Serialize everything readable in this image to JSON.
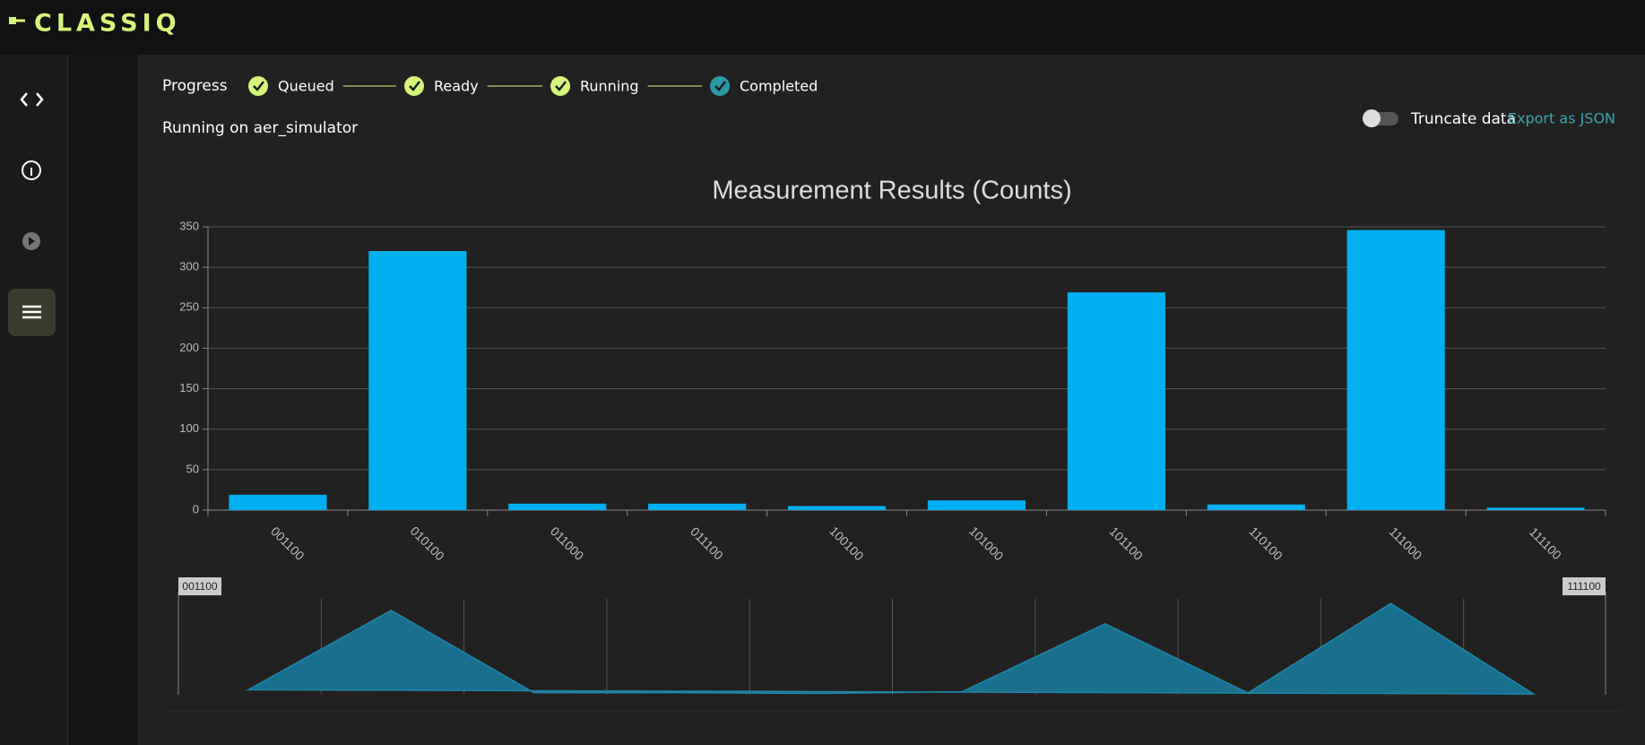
{
  "header": {
    "logo": "CLASSIQ"
  },
  "progress": {
    "label": "Progress",
    "steps": [
      "Queued",
      "Ready",
      "Running",
      "Completed"
    ],
    "status": "Running on aer_simulator"
  },
  "controls": {
    "toggle": "Truncate data",
    "export": "Export as JSON"
  },
  "chart_data": {
    "type": "bar",
    "title": "Measurement Results (Counts)",
    "categories": [
      "001100",
      "010100",
      "011000",
      "011100",
      "100100",
      "101000",
      "101100",
      "110100",
      "111000",
      "111100"
    ],
    "values": [
      19,
      320,
      8,
      8,
      5,
      12,
      269,
      7,
      346,
      3
    ],
    "color": "#00b0f0",
    "ylim": [
      0,
      350
    ],
    "yticks": [
      0,
      50,
      100,
      150,
      200,
      250,
      300,
      350
    ],
    "grid": true
  }
}
